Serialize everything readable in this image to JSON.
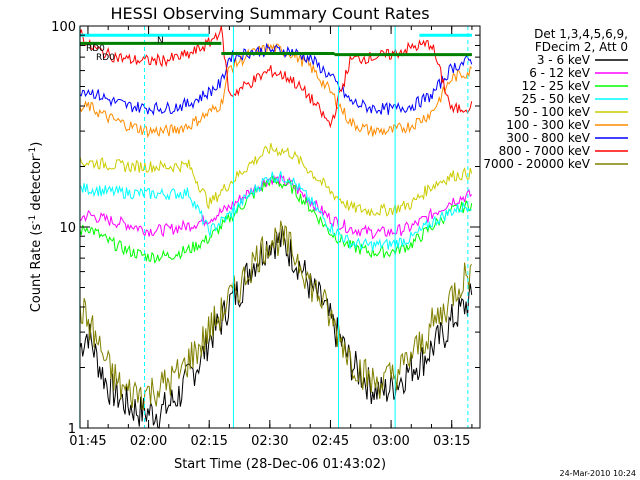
{
  "chart_data": {
    "type": "line",
    "title": "HESSI Observing Summary Count Rates",
    "xlabel": "Start Time (28-Dec-06 01:43:02)",
    "ylabel": "Count Rate (s⁻¹ detector⁻¹)",
    "ylabel_parts": {
      "main": "Count Rate (s",
      "sup1": "-1",
      "mid": " detector",
      "sup2": "-1",
      "end": ")"
    },
    "y_scale": "log",
    "ylim": [
      1,
      100
    ],
    "xlim": [
      "01:43:02",
      "03:22:00"
    ],
    "x_ticks": [
      "01:45",
      "02:00",
      "02:15",
      "02:30",
      "02:45",
      "03:00",
      "03:15"
    ],
    "y_ticks": [
      "1",
      "10",
      "100"
    ],
    "legend": {
      "position": "right",
      "header": [
        "Det 1,3,4,5,6,9,",
        "FDecim 2, Att 0"
      ],
      "entries": [
        "3 - 6 keV",
        "6 - 12 keV",
        "12 - 25 keV",
        "25 - 50 keV",
        "50 - 100 keV",
        "100 - 300 keV",
        "300 - 800 keV",
        "800 - 7000 keV",
        "7000 - 20000 keV"
      ]
    },
    "annotations": {
      "rd0_upper": "RD0",
      "rd0_lower": "RD0",
      "n_marker": "N"
    },
    "footer_date": "24-Mar-2010 10:24",
    "series": [
      {
        "name": "3 - 6 keV",
        "color": "#000000",
        "x": [
          "01:43",
          "01:45",
          "01:48",
          "01:50",
          "01:53",
          "01:55",
          "01:58",
          "02:00",
          "02:03",
          "02:05",
          "02:08",
          "02:10",
          "02:13",
          "02:15",
          "02:18",
          "02:20",
          "02:23",
          "02:25",
          "02:28",
          "02:30",
          "02:33",
          "02:35",
          "02:38",
          "02:40",
          "02:43",
          "02:45",
          "02:48",
          "02:50",
          "02:53",
          "02:55",
          "02:58",
          "03:00",
          "03:03",
          "03:05",
          "03:08",
          "03:10",
          "03:13",
          "03:15",
          "03:18",
          "03:20"
        ],
        "y": [
          2.5,
          3,
          2,
          1.6,
          1.4,
          1.3,
          1.2,
          1.2,
          1.2,
          1.3,
          1.5,
          1.8,
          2.2,
          2.8,
          3.4,
          4.2,
          5,
          6.2,
          7.5,
          8.5,
          8.5,
          7.5,
          6.2,
          5,
          4.2,
          3.4,
          2.6,
          2.1,
          1.8,
          1.6,
          1.5,
          1.6,
          1.8,
          2,
          2.2,
          2.5,
          2.9,
          3.4,
          4,
          4.4
        ]
      },
      {
        "name": "6 - 12 keV",
        "color": "#ff00ff",
        "x": [
          "01:43",
          "01:45",
          "01:50",
          "01:55",
          "02:00",
          "02:05",
          "02:10",
          "02:15",
          "02:20",
          "02:25",
          "02:30",
          "02:35",
          "02:40",
          "02:45",
          "02:50",
          "02:55",
          "03:00",
          "03:05",
          "03:10",
          "03:15",
          "03:20"
        ],
        "y": [
          11,
          11.5,
          10.8,
          10.3,
          9.6,
          9.7,
          10.2,
          11,
          12.5,
          15,
          17.5,
          16.5,
          13.5,
          11,
          9.8,
          9.4,
          9.4,
          10,
          11.5,
          13.5,
          14.5
        ]
      },
      {
        "name": "12 - 25 keV",
        "color": "#00ff00",
        "x": [
          "01:43",
          "01:45",
          "01:50",
          "01:55",
          "02:00",
          "02:05",
          "02:10",
          "02:15",
          "02:20",
          "02:25",
          "02:30",
          "02:35",
          "02:40",
          "02:45",
          "02:50",
          "02:55",
          "03:00",
          "03:05",
          "03:10",
          "03:15",
          "03:20"
        ],
        "y": [
          9.5,
          10,
          8.5,
          7.6,
          7.1,
          7.2,
          7.7,
          8.8,
          11,
          14,
          17,
          16,
          12.5,
          9.4,
          8,
          7.5,
          7.5,
          8.2,
          10,
          12,
          13
        ]
      },
      {
        "name": "25 - 50 keV",
        "color": "#00ffff",
        "x": [
          "01:43",
          "01:45",
          "01:50",
          "01:55",
          "02:00",
          "02:05",
          "02:10",
          "02:15",
          "02:20",
          "02:25",
          "02:30",
          "02:35",
          "02:40",
          "02:45",
          "02:50",
          "02:55",
          "03:00",
          "03:05",
          "03:10",
          "03:15",
          "03:20"
        ],
        "y": [
          15.5,
          15.5,
          15,
          14.8,
          14.6,
          14.6,
          14.8,
          9.5,
          11.5,
          14.5,
          18,
          17.5,
          13.5,
          10,
          8.3,
          8.1,
          8.2,
          8.8,
          10.5,
          12,
          13
        ]
      },
      {
        "name": "50 - 100 keV",
        "color": "#cccc00",
        "x": [
          "01:43",
          "01:45",
          "01:50",
          "01:55",
          "02:00",
          "02:05",
          "02:10",
          "02:15",
          "02:20",
          "02:25",
          "02:30",
          "02:35",
          "02:40",
          "02:45",
          "02:50",
          "02:55",
          "03:00",
          "03:05",
          "03:10",
          "03:15",
          "03:20"
        ],
        "y": [
          21,
          21,
          20.5,
          20,
          20,
          20,
          20.3,
          13,
          16.5,
          20.5,
          24.5,
          23.5,
          19,
          15,
          12.5,
          12,
          12.2,
          13,
          16,
          18,
          18.5
        ]
      },
      {
        "name": "100 - 300 keV",
        "color": "#ff8c00",
        "x": [
          "01:43",
          "01:45",
          "01:50",
          "01:55",
          "02:00",
          "02:05",
          "02:10",
          "02:15",
          "02:18",
          "02:20",
          "02:25",
          "02:30",
          "02:35",
          "02:40",
          "02:45",
          "02:50",
          "02:55",
          "03:00",
          "03:05",
          "03:10",
          "03:15",
          "03:20"
        ],
        "y": [
          38,
          40,
          35,
          32,
          30,
          30,
          32,
          37,
          41,
          62,
          72,
          78,
          74,
          63,
          47,
          33,
          30,
          30,
          32,
          37,
          55,
          60
        ]
      },
      {
        "name": "300 - 800 keV",
        "color": "#0000ff",
        "x": [
          "01:43",
          "01:45",
          "01:50",
          "01:55",
          "02:00",
          "02:05",
          "02:10",
          "02:15",
          "02:18",
          "02:20",
          "02:25",
          "02:30",
          "02:35",
          "02:40",
          "02:45",
          "02:50",
          "02:55",
          "03:00",
          "03:05",
          "03:10",
          "03:15",
          "03:20"
        ],
        "y": [
          48,
          48,
          43,
          40,
          39,
          39,
          41,
          47,
          52,
          70,
          74,
          76,
          75,
          69,
          56,
          42,
          39,
          38.5,
          40,
          45,
          62,
          68
        ]
      },
      {
        "name": "800 - 7000 keV",
        "color": "#ff0000",
        "x": [
          "01:43",
          "01:45",
          "01:50",
          "01:55",
          "02:00",
          "02:05",
          "02:10",
          "02:15",
          "02:18",
          "02:20",
          "02:25",
          "02:30",
          "02:35",
          "02:40",
          "02:45",
          "02:50",
          "02:55",
          "03:00",
          "03:05",
          "03:10",
          "03:15",
          "03:20"
        ],
        "y": [
          95,
          80,
          72,
          68,
          67,
          68,
          72,
          82,
          97,
          45,
          52,
          60,
          55,
          44,
          32,
          68,
          70,
          72,
          78,
          82,
          38,
          40
        ]
      },
      {
        "name": "7000 - 20000 keV",
        "color": "#808000",
        "x": [
          "01:43",
          "01:45",
          "01:48",
          "01:50",
          "01:53",
          "01:55",
          "01:58",
          "02:00",
          "02:03",
          "02:05",
          "02:08",
          "02:10",
          "02:13",
          "02:15",
          "02:18",
          "02:20",
          "02:23",
          "02:25",
          "02:28",
          "02:30",
          "02:33",
          "02:35",
          "02:38",
          "02:40",
          "02:43",
          "02:45",
          "02:48",
          "02:50",
          "02:53",
          "02:55",
          "02:58",
          "03:00",
          "03:03",
          "03:05",
          "03:08",
          "03:10",
          "03:13",
          "03:15",
          "03:18",
          "03:20"
        ],
        "y": [
          4,
          3.4,
          2.5,
          2,
          1.6,
          1.5,
          1.5,
          1.5,
          1.6,
          1.7,
          1.9,
          2.2,
          2.6,
          3.1,
          3.7,
          4.4,
          5.2,
          6.3,
          7.6,
          8.6,
          8.8,
          7.8,
          6.5,
          5.2,
          4.3,
          3.5,
          2.7,
          2.2,
          1.9,
          1.7,
          1.7,
          1.8,
          2,
          2.3,
          2.7,
          3.2,
          3.8,
          4.6,
          5.6,
          6
        ]
      }
    ],
    "overlays": {
      "rd0_upper": {
        "color": "#00ffff",
        "y": 90,
        "segments": [
          [
            "01:43",
            "02:15"
          ],
          [
            "03:07",
            "03:20"
          ]
        ]
      },
      "rd0_lower": {
        "color": "#008000",
        "y": [
          82,
          72
        ],
        "segments": [
          [
            "01:43",
            "02:18"
          ],
          [
            "02:18",
            "02:46"
          ],
          [
            "02:46",
            "03:20"
          ]
        ],
        "levels": [
          82,
          73,
          72
        ]
      },
      "saa_lines_solid": [
        "01:43",
        "02:21",
        "02:47",
        "03:01"
      ],
      "night_lines_dashed": [
        "01:59",
        "03:19"
      ]
    }
  }
}
